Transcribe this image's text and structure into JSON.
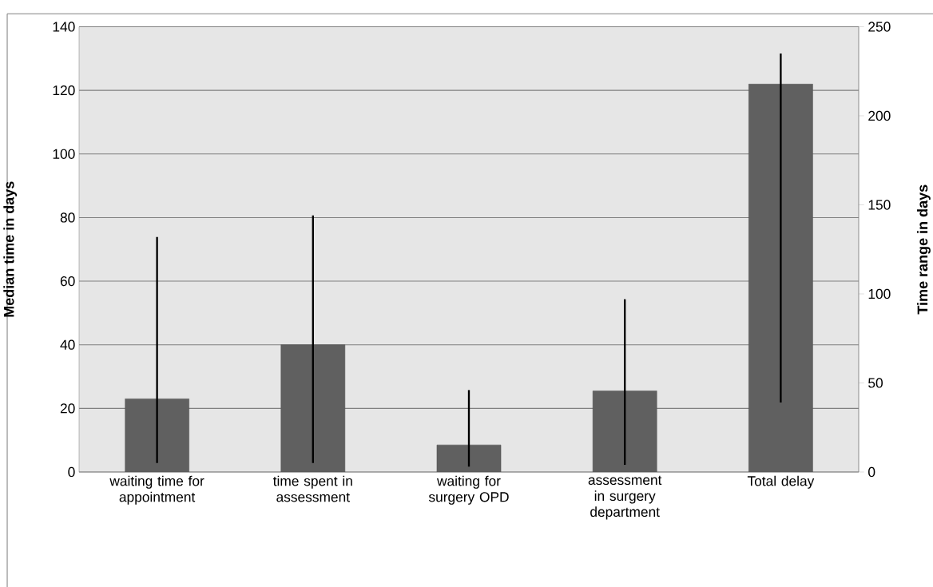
{
  "chart_data": {
    "type": "bar",
    "categories": [
      "waiting time for appointment",
      "time spent in assessment",
      "waiting for surgery OPD",
      "assessment in surgery department",
      "Total delay"
    ],
    "ylabel": "Median time in days",
    "y2label": "Time range in days",
    "ylim": [
      0,
      140
    ],
    "yticks": [
      0,
      20,
      40,
      60,
      80,
      100,
      120,
      140
    ],
    "y2lim": [
      0,
      250
    ],
    "y2ticks": [
      0,
      50,
      100,
      150,
      200,
      250
    ],
    "grid": "y",
    "series": [
      {
        "color": "#606060",
        "values": [
          23,
          40,
          8.5,
          25.5,
          122
        ]
      },
      {
        "axis": "y2",
        "color": "#000000",
        "base": [
          5,
          5,
          3,
          4,
          39
        ],
        "values": [
          127,
          139,
          43,
          93,
          196
        ]
      }
    ]
  }
}
